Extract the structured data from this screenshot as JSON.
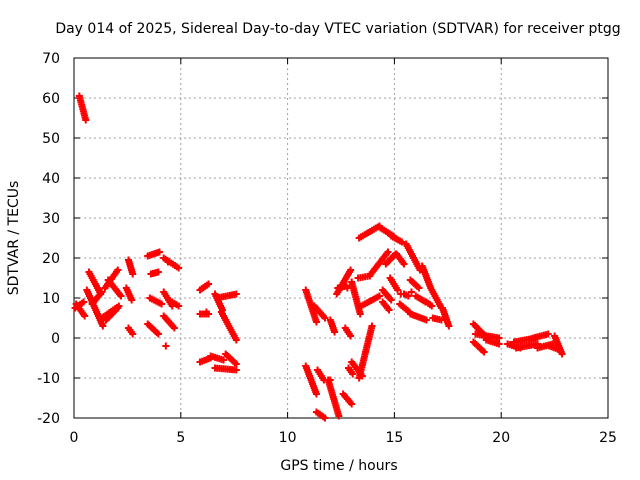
{
  "chart_data": {
    "type": "scatter",
    "title": "Day 014 of 2025, Sidereal Day-to-day VTEC variation (SDTVAR) for receiver ptgg",
    "xlabel": "GPS time / hours",
    "ylabel": "SDTVAR / TECUs",
    "xlim": [
      0,
      25
    ],
    "ylim": [
      -20,
      70
    ],
    "xticks": [
      "0",
      "5",
      "10",
      "15",
      "20",
      "25"
    ],
    "yticks": [
      "-20",
      "-10",
      "0",
      "10",
      "20",
      "30",
      "40",
      "50",
      "60",
      "70"
    ],
    "grid": true,
    "marker": "+",
    "color": "#ff0000",
    "segments": [
      {
        "x": [
          0.25,
          0.55
        ],
        "y": [
          60.5,
          54.5
        ]
      },
      {
        "x": [
          0.05,
          0.45
        ],
        "y": [
          7.5,
          9.0
        ]
      },
      {
        "x": [
          0.1,
          0.5
        ],
        "y": [
          8.5,
          5.5
        ]
      },
      {
        "x": [
          0.6,
          1.35
        ],
        "y": [
          12.0,
          3.0
        ]
      },
      {
        "x": [
          0.7,
          1.25
        ],
        "y": [
          16.5,
          11.0
        ]
      },
      {
        "x": [
          0.85,
          1.3
        ],
        "y": [
          8.5,
          11.5
        ]
      },
      {
        "x": [
          1.45,
          2.05
        ],
        "y": [
          12.5,
          17.0
        ]
      },
      {
        "x": [
          1.6,
          2.2
        ],
        "y": [
          14.5,
          10.5
        ]
      },
      {
        "x": [
          1.3,
          2.1
        ],
        "y": [
          5.0,
          8.0
        ]
      },
      {
        "x": [
          1.5,
          2.05
        ],
        "y": [
          4.5,
          7.5
        ]
      },
      {
        "x": [
          2.55,
          2.75
        ],
        "y": [
          19.5,
          16.0
        ]
      },
      {
        "x": [
          2.45,
          2.7
        ],
        "y": [
          12.5,
          9.5
        ]
      },
      {
        "x": [
          2.55,
          2.75
        ],
        "y": [
          2.5,
          1.0
        ]
      },
      {
        "x": [
          3.45,
          4.0
        ],
        "y": [
          20.5,
          21.5
        ]
      },
      {
        "x": [
          4.2,
          4.9
        ],
        "y": [
          20.0,
          17.5
        ]
      },
      {
        "x": [
          3.6,
          3.95
        ],
        "y": [
          16.0,
          16.5
        ]
      },
      {
        "x": [
          3.55,
          4.1
        ],
        "y": [
          10.0,
          8.5
        ]
      },
      {
        "x": [
          4.2,
          4.6
        ],
        "y": [
          11.5,
          8.0
        ]
      },
      {
        "x": [
          4.6,
          4.9
        ],
        "y": [
          9.0,
          8.0
        ]
      },
      {
        "x": [
          3.45,
          3.95
        ],
        "y": [
          3.5,
          1.0
        ]
      },
      {
        "x": [
          4.2,
          4.7
        ],
        "y": [
          5.5,
          2.5
        ]
      },
      {
        "x": [
          5.9,
          6.3
        ],
        "y": [
          12.0,
          13.5
        ]
      },
      {
        "x": [
          5.9,
          6.3
        ],
        "y": [
          6.0,
          6.0
        ]
      },
      {
        "x": [
          6.6,
          6.95
        ],
        "y": [
          11.0,
          7.0
        ]
      },
      {
        "x": [
          6.7,
          7.6
        ],
        "y": [
          10.0,
          11.0
        ]
      },
      {
        "x": [
          6.9,
          7.6
        ],
        "y": [
          6.5,
          -0.5
        ]
      },
      {
        "x": [
          5.9,
          6.4
        ],
        "y": [
          -6.0,
          -5.0
        ]
      },
      {
        "x": [
          6.4,
          7.0
        ],
        "y": [
          -4.5,
          -5.5
        ]
      },
      {
        "x": [
          6.6,
          7.6
        ],
        "y": [
          -7.5,
          -8.0
        ]
      },
      {
        "x": [
          7.1,
          7.6
        ],
        "y": [
          -4.0,
          -6.5
        ]
      },
      {
        "x": [
          10.85,
          11.35
        ],
        "y": [
          12.0,
          4.0
        ]
      },
      {
        "x": [
          11.25,
          11.75
        ],
        "y": [
          8.0,
          5.0
        ]
      },
      {
        "x": [
          10.85,
          11.35
        ],
        "y": [
          -7.0,
          -14.0
        ]
      },
      {
        "x": [
          11.4,
          11.7
        ],
        "y": [
          -8.0,
          -10.5
        ]
      },
      {
        "x": [
          11.35,
          11.75
        ],
        "y": [
          -18.5,
          -20.0
        ]
      },
      {
        "x": [
          11.9,
          12.4
        ],
        "y": [
          -10.5,
          -19.5
        ]
      },
      {
        "x": [
          12.0,
          12.2
        ],
        "y": [
          4.5,
          1.5
        ]
      },
      {
        "x": [
          12.3,
          12.95
        ],
        "y": [
          11.0,
          17.0
        ]
      },
      {
        "x": [
          12.35,
          12.75
        ],
        "y": [
          12.5,
          13.0
        ]
      },
      {
        "x": [
          12.7,
          12.95
        ],
        "y": [
          2.5,
          0.5
        ]
      },
      {
        "x": [
          12.85,
          13.05
        ],
        "y": [
          -7.5,
          -9.0
        ]
      },
      {
        "x": [
          12.6,
          13.0
        ],
        "y": [
          -14.0,
          -16.5
        ]
      },
      {
        "x": [
          13.0,
          13.4
        ],
        "y": [
          14.0,
          6.0
        ]
      },
      {
        "x": [
          13.35,
          13.95
        ],
        "y": [
          -10.0,
          3.0
        ]
      },
      {
        "x": [
          13.0,
          13.5
        ],
        "y": [
          -6.0,
          -9.5
        ]
      },
      {
        "x": [
          13.35,
          14.3
        ],
        "y": [
          25.0,
          28.0
        ]
      },
      {
        "x": [
          13.3,
          13.85
        ],
        "y": [
          15.0,
          15.5
        ]
      },
      {
        "x": [
          13.9,
          14.7
        ],
        "y": [
          16.0,
          21.5
        ]
      },
      {
        "x": [
          13.45,
          14.3
        ],
        "y": [
          8.0,
          10.5
        ]
      },
      {
        "x": [
          14.45,
          14.85
        ],
        "y": [
          12.0,
          9.5
        ]
      },
      {
        "x": [
          14.35,
          14.95
        ],
        "y": [
          27.5,
          25.5
        ]
      },
      {
        "x": [
          14.6,
          15.05
        ],
        "y": [
          18.5,
          21.0
        ]
      },
      {
        "x": [
          14.8,
          15.15
        ],
        "y": [
          15.0,
          12.0
        ]
      },
      {
        "x": [
          14.45,
          14.75
        ],
        "y": [
          9.0,
          7.0
        ]
      },
      {
        "x": [
          14.85,
          15.35
        ],
        "y": [
          25.5,
          24.0
        ]
      },
      {
        "x": [
          15.1,
          15.45
        ],
        "y": [
          21.0,
          18.5
        ]
      },
      {
        "x": [
          15.25,
          15.7
        ],
        "y": [
          8.5,
          6.5
        ]
      },
      {
        "x": [
          15.45,
          15.65
        ],
        "y": [
          11.0,
          10.5
        ]
      },
      {
        "x": [
          15.55,
          16.2
        ],
        "y": [
          23.5,
          17.0
        ]
      },
      {
        "x": [
          15.75,
          16.15
        ],
        "y": [
          14.5,
          12.5
        ]
      },
      {
        "x": [
          16.0,
          16.45
        ],
        "y": [
          10.5,
          9.0
        ]
      },
      {
        "x": [
          15.75,
          16.5
        ],
        "y": [
          6.0,
          4.5
        ]
      },
      {
        "x": [
          16.3,
          16.7
        ],
        "y": [
          18.0,
          12.5
        ]
      },
      {
        "x": [
          16.5,
          16.75
        ],
        "y": [
          9.0,
          8.0
        ]
      },
      {
        "x": [
          16.75,
          17.2
        ],
        "y": [
          12.0,
          7.5
        ]
      },
      {
        "x": [
          16.8,
          17.2
        ],
        "y": [
          5.0,
          4.5
        ]
      },
      {
        "x": [
          17.25,
          17.55
        ],
        "y": [
          7.5,
          3.0
        ]
      },
      {
        "x": [
          18.7,
          19.35
        ],
        "y": [
          3.5,
          0.0
        ]
      },
      {
        "x": [
          18.8,
          19.9
        ],
        "y": [
          1.0,
          0.0
        ]
      },
      {
        "x": [
          18.7,
          19.2
        ],
        "y": [
          -1.0,
          -3.5
        ]
      },
      {
        "x": [
          19.3,
          19.9
        ],
        "y": [
          -0.5,
          -1.5
        ]
      },
      {
        "x": [
          20.3,
          20.9
        ],
        "y": [
          -1.5,
          -2.5
        ]
      },
      {
        "x": [
          20.6,
          21.6
        ],
        "y": [
          -1.0,
          0.0
        ]
      },
      {
        "x": [
          20.7,
          21.7
        ],
        "y": [
          -2.5,
          -1.5
        ]
      },
      {
        "x": [
          21.5,
          22.2
        ],
        "y": [
          0.0,
          1.0
        ]
      },
      {
        "x": [
          21.7,
          22.4
        ],
        "y": [
          -2.5,
          -1.5
        ]
      },
      {
        "x": [
          22.5,
          22.85
        ],
        "y": [
          0.5,
          -4.0
        ]
      },
      {
        "x": [
          22.25,
          22.75
        ],
        "y": [
          -2.0,
          -3.0
        ]
      }
    ],
    "isolated_points": [
      {
        "x": 4.4,
        "y": 19.0
      },
      {
        "x": 4.3,
        "y": -2.0
      },
      {
        "x": 6.2,
        "y": 6.5
      },
      {
        "x": 12.0,
        "y": -10.5
      },
      {
        "x": 12.8,
        "y": 12.5
      },
      {
        "x": 15.3,
        "y": 11.0
      },
      {
        "x": 15.6,
        "y": 23.0
      },
      {
        "x": 15.8,
        "y": 11.5
      }
    ]
  }
}
